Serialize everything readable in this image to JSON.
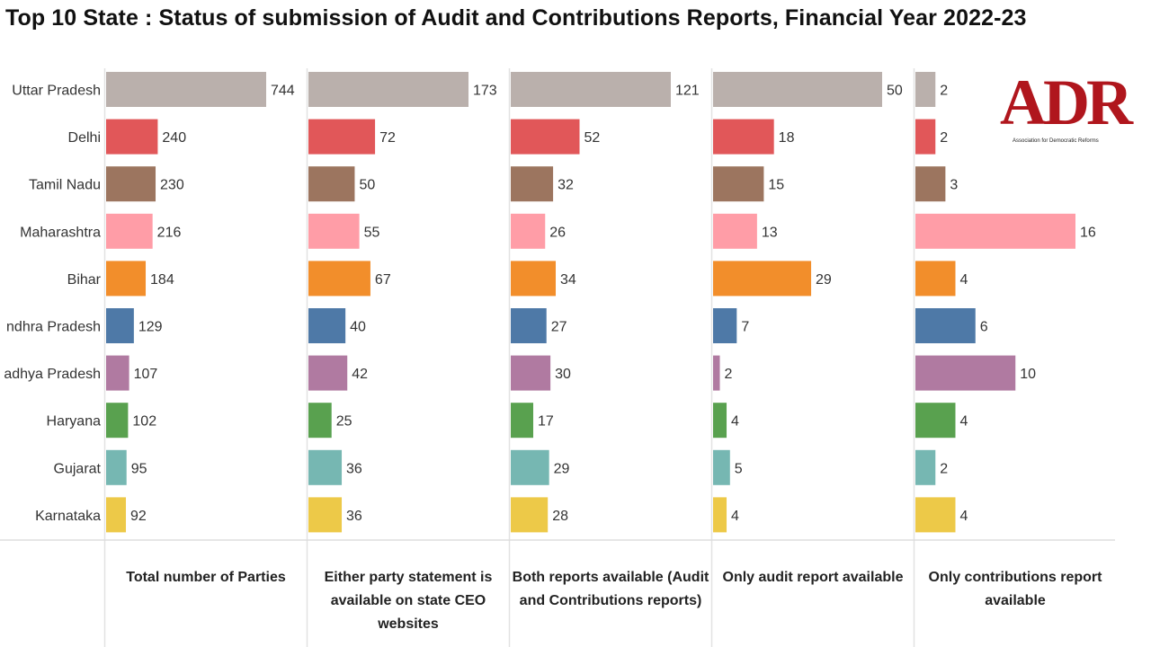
{
  "title": "Top 10 State : Status of submission of Audit and Contributions Reports, Financial Year 2022-23",
  "logo": {
    "text": "ADR",
    "subtitle": "Association for Democratic Reforms"
  },
  "chart_data": {
    "type": "bar",
    "orientation": "horizontal",
    "grid": false,
    "categories": [
      "Uttar Pradesh",
      "Delhi",
      "Tamil Nadu",
      "Maharashtra",
      "Bihar",
      "Andhra Pradesh",
      "Madhya Pradesh",
      "Haryana",
      "Gujarat",
      "Karnataka"
    ],
    "category_labels_visible": [
      "Uttar Pradesh",
      "Delhi",
      "Tamil Nadu",
      "Maharashtra",
      "Bihar",
      "ndhra Pradesh",
      "adhya Pradesh",
      "Haryana",
      "Gujarat",
      "Karnataka"
    ],
    "category_colors": [
      "#bab0ac",
      "#e15759",
      "#9c755f",
      "#ff9da7",
      "#f28e2b",
      "#4e79a7",
      "#b07aa1",
      "#59a14f",
      "#76b7b2",
      "#edc948"
    ],
    "panels": [
      {
        "name": "Total number of Parties",
        "title_lines": [
          "Total number of Parties"
        ],
        "max": 744,
        "values": [
          744,
          240,
          230,
          216,
          184,
          129,
          107,
          102,
          95,
          92
        ]
      },
      {
        "name": "Either party statement is available on state CEO websites",
        "title_lines": [
          "Either party statement is",
          "available on state CEO",
          "websites"
        ],
        "max": 173,
        "values": [
          173,
          72,
          50,
          55,
          67,
          40,
          42,
          25,
          36,
          36
        ]
      },
      {
        "name": "Both reports available (Audit and Contributions reports)",
        "title_lines": [
          "Both reports available (Audit",
          "and Contributions reports)"
        ],
        "max": 121,
        "values": [
          121,
          52,
          32,
          26,
          34,
          27,
          30,
          17,
          29,
          28
        ]
      },
      {
        "name": "Only audit report available",
        "title_lines": [
          "Only audit report available"
        ],
        "max": 50,
        "values": [
          50,
          18,
          15,
          13,
          29,
          7,
          2,
          4,
          5,
          4
        ]
      },
      {
        "name": "Only contributions report available",
        "title_lines": [
          "Only contributions report",
          "available"
        ],
        "max": 16,
        "values": [
          2,
          2,
          3,
          16,
          4,
          6,
          10,
          4,
          2,
          4
        ]
      }
    ]
  }
}
